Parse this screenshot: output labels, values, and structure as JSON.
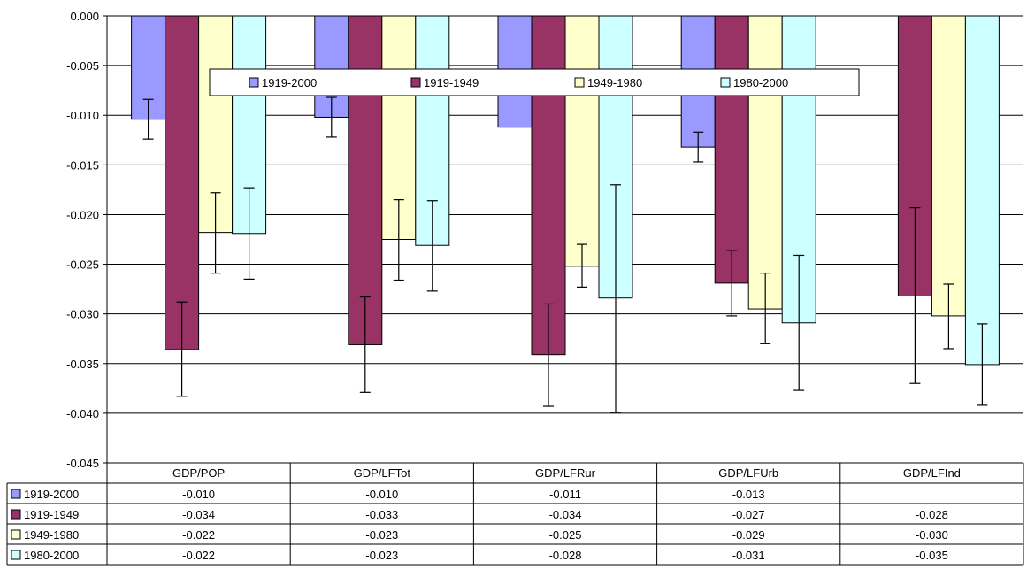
{
  "chart_data": {
    "type": "bar",
    "title": "",
    "xlabel": "",
    "ylabel": "",
    "ylim": [
      -0.045,
      0.0
    ],
    "yticks": [
      "0.000",
      "-0.005",
      "-0.010",
      "-0.015",
      "-0.020",
      "-0.025",
      "-0.030",
      "-0.035",
      "-0.040",
      "-0.045"
    ],
    "ytick_values": [
      0.0,
      -0.005,
      -0.01,
      -0.015,
      -0.02,
      -0.025,
      -0.03,
      -0.035,
      -0.04,
      -0.045
    ],
    "grid": true,
    "legend_position": "top-center",
    "categories": [
      "GDP/POP",
      "GDP/LFTot",
      "GDP/LFRur",
      "GDP/LFUrb",
      "GDP/LFInd"
    ],
    "series": [
      {
        "name": "1919-2000",
        "color": "#9999ff",
        "values": [
          -0.0104,
          -0.0102,
          -0.0112,
          -0.0132,
          null
        ],
        "error_bars": [
          [
            -0.0084,
            -0.0124
          ],
          [
            -0.0082,
            -0.0122
          ],
          null,
          [
            -0.0117,
            -0.0147
          ],
          null
        ],
        "table_values": [
          "-0.010",
          "-0.010",
          "-0.011",
          "-0.013",
          ""
        ]
      },
      {
        "name": "1919-1949",
        "color": "#993366",
        "values": [
          -0.0336,
          -0.0331,
          -0.0341,
          -0.0269,
          -0.0282
        ],
        "error_bars": [
          [
            -0.0288,
            -0.0383
          ],
          [
            -0.0283,
            -0.0379
          ],
          [
            -0.029,
            -0.0393
          ],
          [
            -0.0236,
            -0.0302
          ],
          [
            -0.0193,
            -0.037
          ]
        ],
        "table_values": [
          "-0.034",
          "-0.033",
          "-0.034",
          "-0.027",
          "-0.028"
        ]
      },
      {
        "name": "1949-1980",
        "color": "#ffffcc",
        "values": [
          -0.0218,
          -0.0225,
          -0.0252,
          -0.0295,
          -0.0302
        ],
        "error_bars": [
          [
            -0.0178,
            -0.0259
          ],
          [
            -0.0185,
            -0.0266
          ],
          [
            -0.023,
            -0.0273
          ],
          [
            -0.0259,
            -0.033
          ],
          [
            -0.027,
            -0.0335
          ]
        ],
        "table_values": [
          "-0.022",
          "-0.023",
          "-0.025",
          "-0.029",
          "-0.030"
        ]
      },
      {
        "name": "1980-2000",
        "color": "#ccffff",
        "values": [
          -0.0219,
          -0.0231,
          -0.0284,
          -0.0309,
          -0.0351
        ],
        "error_bars": [
          [
            -0.0173,
            -0.0265
          ],
          [
            -0.0186,
            -0.0277
          ],
          [
            -0.017,
            -0.0399
          ],
          [
            -0.0241,
            -0.0377
          ],
          [
            -0.031,
            -0.0392
          ]
        ],
        "table_values": [
          "-0.022",
          "-0.023",
          "-0.028",
          "-0.031",
          "-0.035"
        ]
      }
    ]
  }
}
